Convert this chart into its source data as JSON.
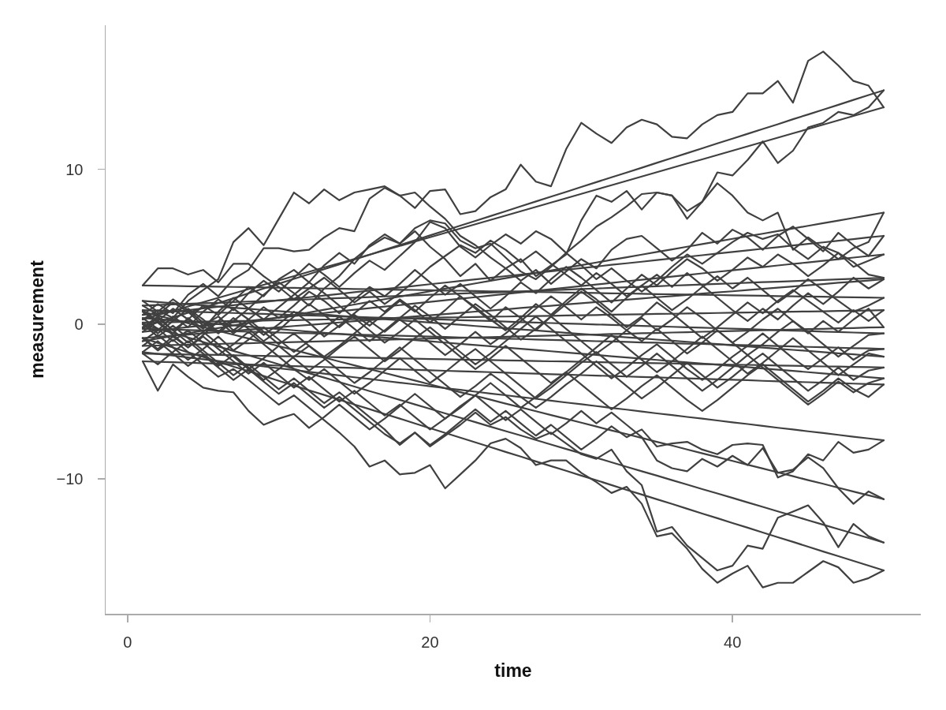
{
  "chart_data": {
    "type": "line",
    "xlabel": "time",
    "ylabel": "measurement",
    "x": [
      1,
      2,
      3,
      4,
      5,
      6,
      7,
      8,
      9,
      10,
      11,
      12,
      13,
      14,
      15,
      16,
      17,
      18,
      19,
      20,
      21,
      22,
      23,
      24,
      25,
      26,
      27,
      28,
      29,
      30,
      31,
      32,
      33,
      34,
      35,
      36,
      37,
      38,
      39,
      40,
      41,
      42,
      43,
      44,
      45,
      46,
      47,
      48,
      49,
      50
    ],
    "xlim": [
      -1.45,
      52.45
    ],
    "xticks": [
      0,
      20,
      40
    ],
    "ylim": [
      -18.7,
      19.3
    ],
    "yticks": [
      {
        "value": -10,
        "label": "−10"
      },
      0,
      10
    ],
    "grid": false,
    "marker": "none",
    "line_style": "solid",
    "series": [
      {
        "color": "#404040",
        "values": [
          0.3,
          0.9,
          0.4,
          1.5,
          2.2,
          2.9,
          5.3,
          6.2,
          5.1,
          6.8,
          8.5,
          7.8,
          8.7,
          8.0,
          8.5,
          8.7,
          8.9,
          8.3,
          7.5,
          8.6,
          8.7,
          7.1,
          7.3,
          8.2,
          8.7,
          10.3,
          9.2,
          8.9,
          11.3,
          13.0,
          12.3,
          11.7,
          12.7,
          13.2,
          12.9,
          12.1,
          12.0,
          12.9,
          13.5,
          13.7,
          14.9,
          14.9,
          15.7,
          14.3,
          17.0,
          17.6,
          16.7,
          15.7,
          15.4,
          14.0
        ]
      },
      {
        "color": "#404040",
        "values": [
          -0.2,
          0.5,
          -0.4,
          0.3,
          1.2,
          0.6,
          1.5,
          2.4,
          1.8,
          2.9,
          3.5,
          2.7,
          3.8,
          4.6,
          3.9,
          5.1,
          5.8,
          5.2,
          6.0,
          5.0,
          4.2,
          3.1,
          3.9,
          2.8,
          3.6,
          4.2,
          3.1,
          3.8,
          4.5,
          6.7,
          8.3,
          7.9,
          8.6,
          7.4,
          8.5,
          8.3,
          6.8,
          7.9,
          9.8,
          9.6,
          10.6,
          11.8,
          10.4,
          11.2,
          12.7,
          13.0,
          13.7,
          13.5,
          14.0,
          15.1
        ]
      },
      {
        "color": "#404040",
        "values": [
          -1.1,
          -0.4,
          0.5,
          -0.2,
          0.8,
          1.6,
          0.9,
          2.0,
          2.8,
          2.1,
          3.0,
          3.9,
          3.2,
          2.4,
          3.3,
          4.1,
          3.5,
          4.4,
          5.3,
          6.6,
          6.2,
          5.0,
          4.3,
          5.1,
          5.8,
          5.2,
          6.0,
          5.5,
          4.6,
          5.4,
          6.3,
          6.9,
          7.6,
          8.4,
          8.5,
          8.3,
          7.3,
          7.9,
          9.1,
          8.3,
          7.2,
          6.7,
          7.2,
          4.8,
          5.6,
          4.9,
          4.2,
          4.9,
          5.3,
          7.2
        ]
      },
      {
        "color": "#404040",
        "values": [
          0.6,
          1.3,
          0.7,
          1.9,
          2.6,
          1.8,
          2.9,
          3.5,
          4.9,
          4.9,
          4.7,
          4.8,
          5.6,
          6.2,
          6.0,
          8.1,
          8.8,
          8.3,
          8.5,
          7.6,
          6.8,
          5.7,
          5.1,
          4.3,
          3.6,
          2.8,
          3.5,
          2.6,
          3.4,
          4.2,
          3.6,
          4.8,
          5.5,
          5.7,
          4.9,
          4.1,
          4.8,
          5.9,
          5.2,
          6.1,
          5.6,
          4.8,
          5.7,
          6.3,
          5.5,
          4.7,
          5.9,
          5.1,
          4.4,
          5.7
        ]
      },
      {
        "color": "#404040",
        "values": [
          -0.5,
          0.2,
          -0.6,
          0.4,
          -0.3,
          0.8,
          1.7,
          1.0,
          1.9,
          2.7,
          2.0,
          1.2,
          2.3,
          3.1,
          4.2,
          5.0,
          5.6,
          5.2,
          6.2,
          6.7,
          6.5,
          5.4,
          4.9,
          5.2,
          4.3,
          3.4,
          2.9,
          3.7,
          4.6,
          3.8,
          2.9,
          3.6,
          2.8,
          2.1,
          2.8,
          3.7,
          4.5,
          3.9,
          4.6,
          5.3,
          5.9,
          5.5,
          5.8,
          4.9,
          4.2,
          5.0,
          4.6,
          3.7,
          4.1,
          4.5
        ]
      },
      {
        "color": "#404040",
        "values": [
          1.2,
          0.6,
          1.4,
          0.8,
          -0.1,
          0.5,
          -0.4,
          0.3,
          1.1,
          0.4,
          1.2,
          2.1,
          1.5,
          0.7,
          1.6,
          2.4,
          1.8,
          2.6,
          3.5,
          2.7,
          1.9,
          2.6,
          1.8,
          1.0,
          1.8,
          2.7,
          2.0,
          2.9,
          3.7,
          3.0,
          2.2,
          1.4,
          2.3,
          3.2,
          2.5,
          3.4,
          4.2,
          3.6,
          2.8,
          3.5,
          4.3,
          3.7,
          4.5,
          3.9,
          3.1,
          3.8,
          4.6,
          4.0,
          3.2,
          3.0
        ]
      },
      {
        "color": "#404040",
        "values": [
          -0.9,
          -1.6,
          -0.8,
          -1.5,
          -0.7,
          0.2,
          -0.6,
          0.1,
          -0.7,
          0.0,
          0.8,
          0.1,
          -0.8,
          -0.1,
          0.7,
          1.5,
          0.8,
          1.6,
          0.9,
          0.1,
          0.9,
          1.8,
          1.1,
          0.3,
          -0.4,
          0.4,
          1.3,
          0.6,
          1.5,
          2.3,
          1.6,
          0.8,
          1.7,
          2.5,
          3.2,
          2.4,
          3.3,
          2.5,
          1.7,
          0.9,
          0.2,
          1.0,
          0.3,
          1.2,
          2.0,
          1.3,
          2.1,
          3.0,
          2.3,
          2.9
        ]
      },
      {
        "color": "#404040",
        "values": [
          2.5,
          3.6,
          3.6,
          3.2,
          3.5,
          2.7,
          3.9,
          3.9,
          3.1,
          2.4,
          1.6,
          2.3,
          3.0,
          2.2,
          1.4,
          2.1,
          1.3,
          2.0,
          2.8,
          3.7,
          4.4,
          5.1,
          4.6,
          5.4,
          4.8,
          4.0,
          4.7,
          3.9,
          3.2,
          2.5,
          3.3,
          2.6,
          1.8,
          2.5,
          1.7,
          0.9,
          1.6,
          2.4,
          3.1,
          2.3,
          3.0,
          2.2,
          1.4,
          2.1,
          2.9,
          2.2,
          1.5,
          0.8,
          1.2,
          1.7
        ]
      },
      {
        "color": "#404040",
        "values": [
          0.1,
          -0.6,
          0.2,
          1.0,
          0.3,
          -0.5,
          0.4,
          -0.3,
          -1.1,
          -0.4,
          0.5,
          1.3,
          0.6,
          -0.2,
          0.6,
          -0.1,
          0.7,
          1.5,
          0.8,
          1.7,
          2.5,
          1.8,
          1.0,
          0.2,
          1.1,
          0.4,
          -0.4,
          0.5,
          1.3,
          2.1,
          1.4,
          0.6,
          -0.2,
          0.5,
          1.4,
          0.7,
          -0.1,
          -0.9,
          -0.2,
          0.6,
          1.4,
          0.7,
          1.5,
          2.2,
          1.5,
          0.8,
          0.1,
          0.9,
          0.2,
          0.9
        ]
      },
      {
        "color": "#404040",
        "values": [
          -1.4,
          -0.7,
          -1.5,
          -2.3,
          -1.6,
          -0.8,
          -1.7,
          -1.0,
          -0.2,
          -1.0,
          -1.8,
          -1.1,
          -0.3,
          0.5,
          -0.3,
          -1.1,
          -0.4,
          0.4,
          1.2,
          0.5,
          -0.3,
          0.5,
          1.3,
          0.6,
          -0.2,
          -1.0,
          -0.3,
          0.5,
          -0.3,
          -1.1,
          -1.9,
          -1.2,
          -0.4,
          0.4,
          -0.4,
          0.3,
          1.1,
          0.4,
          -0.4,
          -1.2,
          -0.5,
          0.3,
          1.0,
          0.2,
          -0.6,
          0.2,
          -0.5,
          0.3,
          1.0,
          -0.2
        ]
      },
      {
        "color": "#404040",
        "values": [
          0.9,
          0.2,
          1.0,
          0.3,
          -0.5,
          0.2,
          1.0,
          0.3,
          -0.5,
          -1.3,
          -0.6,
          -1.4,
          -2.1,
          -1.4,
          -0.6,
          0.2,
          -0.5,
          0.3,
          -0.4,
          -1.2,
          -2.0,
          -1.3,
          -0.5,
          -1.3,
          -0.6,
          0.2,
          1.0,
          1.8,
          1.1,
          0.3,
          1.1,
          0.4,
          -0.4,
          -1.1,
          -0.3,
          -1.1,
          -1.9,
          -1.2,
          -0.4,
          -1.2,
          -2.0,
          -1.3,
          -0.5,
          0.2,
          -0.5,
          -1.3,
          -2.1,
          -1.4,
          -0.7,
          -0.6
        ]
      },
      {
        "color": "#404040",
        "values": [
          -0.3,
          0.4,
          -0.4,
          -1.2,
          -0.5,
          -1.3,
          -2.1,
          -2.9,
          -2.2,
          -1.4,
          -2.2,
          -3.0,
          -2.3,
          -1.5,
          -0.8,
          -1.6,
          -2.4,
          -1.7,
          -0.9,
          -0.2,
          -1.0,
          -1.8,
          -2.6,
          -1.9,
          -1.1,
          -0.3,
          0.5,
          -0.3,
          -1.1,
          -1.9,
          -2.7,
          -3.5,
          -2.8,
          -2.0,
          -1.3,
          -2.1,
          -2.9,
          -3.6,
          -2.9,
          -2.1,
          -1.4,
          -0.6,
          -1.4,
          -2.2,
          -2.9,
          -2.2,
          -1.5,
          -2.3,
          -1.7,
          -1.6
        ]
      },
      {
        "color": "#404040",
        "values": [
          1.5,
          0.8,
          1.6,
          0.9,
          0.1,
          -0.6,
          0.2,
          1.0,
          0.3,
          1.1,
          1.9,
          2.7,
          2.0,
          1.2,
          0.4,
          -0.4,
          -1.2,
          -0.5,
          0.3,
          -0.5,
          -1.3,
          -2.1,
          -2.9,
          -2.2,
          -1.4,
          -2.2,
          -3.0,
          -3.8,
          -3.1,
          -2.3,
          -1.5,
          -0.7,
          -1.5,
          -2.3,
          -3.1,
          -2.4,
          -1.6,
          -0.8,
          -1.6,
          -2.4,
          -3.2,
          -2.5,
          -1.7,
          -0.9,
          -1.7,
          -2.5,
          -3.3,
          -2.6,
          -1.9,
          -2.1
        ]
      },
      {
        "color": "#404040",
        "values": [
          -1.9,
          -2.6,
          -1.8,
          -1.1,
          -1.9,
          -2.7,
          -2.0,
          -2.8,
          -3.6,
          -2.9,
          -2.1,
          -1.4,
          -2.2,
          -3.0,
          -3.8,
          -3.1,
          -2.3,
          -1.5,
          -2.3,
          -3.1,
          -3.9,
          -4.7,
          -4.0,
          -3.2,
          -3.9,
          -4.7,
          -5.4,
          -4.7,
          -3.9,
          -3.2,
          -2.4,
          -3.2,
          -4.0,
          -4.8,
          -4.1,
          -3.3,
          -2.5,
          -3.3,
          -4.1,
          -3.4,
          -2.6,
          -1.9,
          -2.7,
          -3.5,
          -4.3,
          -3.6,
          -2.8,
          -3.6,
          -3.0,
          -2.8
        ]
      },
      {
        "color": "#404040",
        "values": [
          0.4,
          -0.3,
          -1.1,
          -0.4,
          -1.2,
          -2.0,
          -1.3,
          -0.5,
          -1.3,
          -2.1,
          -2.9,
          -3.6,
          -2.9,
          -3.7,
          -4.5,
          -3.8,
          -3.0,
          -2.2,
          -3.0,
          -3.8,
          -3.1,
          -2.3,
          -1.6,
          -2.4,
          -3.2,
          -4.0,
          -4.8,
          -4.1,
          -3.3,
          -2.5,
          -1.8,
          -2.6,
          -3.4,
          -2.7,
          -1.9,
          -2.7,
          -3.5,
          -4.3,
          -3.6,
          -2.8,
          -2.0,
          -2.8,
          -3.6,
          -4.4,
          -5.2,
          -4.5,
          -3.7,
          -4.4,
          -3.8,
          -3.5
        ]
      },
      {
        "color": "#404040",
        "values": [
          -2.4,
          -4.3,
          -2.6,
          -3.4,
          -4.1,
          -4.3,
          -4.4,
          -5.6,
          -6.5,
          -6.1,
          -5.8,
          -6.7,
          -6.0,
          -5.2,
          -6.0,
          -6.8,
          -6.1,
          -5.3,
          -4.5,
          -5.3,
          -6.1,
          -5.4,
          -4.6,
          -3.8,
          -4.6,
          -5.4,
          -4.7,
          -3.9,
          -3.1,
          -3.9,
          -4.7,
          -5.5,
          -4.8,
          -4.0,
          -3.3,
          -4.1,
          -4.9,
          -5.6,
          -4.9,
          -4.1,
          -3.3,
          -2.6,
          -3.4,
          -4.2,
          -5.0,
          -4.3,
          -3.5,
          -4.2,
          -4.7,
          -3.9
        ]
      },
      {
        "color": "#404040",
        "values": [
          -1.8,
          -1.1,
          -1.9,
          -2.7,
          -2.0,
          -2.8,
          -3.6,
          -2.9,
          -3.7,
          -4.5,
          -3.8,
          -4.6,
          -5.4,
          -4.7,
          -5.5,
          -6.3,
          -7.1,
          -7.7,
          -7.0,
          -7.8,
          -7.1,
          -6.3,
          -5.5,
          -6.3,
          -5.6,
          -6.4,
          -7.2,
          -6.5,
          -7.3,
          -8.1,
          -7.4,
          -6.6,
          -7.3,
          -6.8,
          -7.9,
          -7.7,
          -7.6,
          -8.1,
          -8.4,
          -7.8,
          -7.7,
          -7.8,
          -9.9,
          -9.5,
          -8.4,
          -8.8,
          -7.6,
          -8.3,
          -8.1,
          -7.5
        ]
      },
      {
        "color": "#404040",
        "values": [
          0.8,
          0.1,
          -0.7,
          -1.5,
          -0.8,
          -1.6,
          -2.4,
          -3.2,
          -2.5,
          -3.3,
          -4.1,
          -3.4,
          -4.2,
          -5.0,
          -4.3,
          -5.1,
          -5.9,
          -5.2,
          -6.0,
          -6.8,
          -6.1,
          -5.3,
          -4.6,
          -5.4,
          -6.2,
          -5.5,
          -6.3,
          -7.1,
          -6.4,
          -5.6,
          -6.4,
          -5.7,
          -6.5,
          -7.3,
          -8.8,
          -9.3,
          -9.5,
          -8.7,
          -9.2,
          -8.5,
          -9.1,
          -8.0,
          -9.6,
          -9.4,
          -8.6,
          -9.3,
          -10.6,
          -11.6,
          -10.8,
          -11.3
        ]
      },
      {
        "color": "#404040",
        "values": [
          0.0,
          -0.8,
          -0.1,
          -0.9,
          -1.7,
          -2.5,
          -3.3,
          -2.6,
          -3.4,
          -4.2,
          -3.5,
          -4.3,
          -5.1,
          -4.4,
          -5.2,
          -6.0,
          -6.8,
          -7.8,
          -7.0,
          -7.9,
          -7.2,
          -6.5,
          -5.7,
          -6.5,
          -6.0,
          -6.8,
          -7.4,
          -7.0,
          -7.7,
          -8.4,
          -8.7,
          -8.1,
          -9.5,
          -10.4,
          -13.4,
          -13.1,
          -14.3,
          -15.1,
          -15.9,
          -15.6,
          -14.3,
          -14.5,
          -12.5,
          -12.1,
          -11.7,
          -12.8,
          -14.4,
          -12.9,
          -13.7,
          -14.1
        ]
      },
      {
        "color": "#404040",
        "values": [
          -0.9,
          -1.7,
          -1.0,
          -1.8,
          -2.6,
          -3.4,
          -2.9,
          -3.6,
          -4.4,
          -5.2,
          -4.6,
          -5.4,
          -6.2,
          -7.0,
          -7.9,
          -9.2,
          -8.8,
          -9.7,
          -9.6,
          -9.1,
          -10.6,
          -9.7,
          -8.8,
          -7.7,
          -7.4,
          -8.0,
          -9.1,
          -8.8,
          -8.8,
          -9.6,
          -10.2,
          -10.9,
          -10.5,
          -11.6,
          -13.7,
          -13.5,
          -14.5,
          -15.8,
          -16.7,
          -16.1,
          -15.6,
          -17.0,
          -16.7,
          -16.7,
          -16.0,
          -15.3,
          -15.7,
          -16.7,
          -16.4,
          -15.9
        ]
      },
      {
        "color": "#404040",
        "values": [
          0.3,
          0.58,
          0.86,
          1.14,
          1.42,
          1.7,
          1.98,
          2.26,
          2.54,
          2.82,
          3.1,
          3.38,
          3.66,
          3.93,
          4.21,
          4.49,
          4.77,
          5.05,
          5.33,
          5.61,
          5.89,
          6.17,
          6.45,
          6.73,
          7.01,
          7.29,
          7.57,
          7.85,
          8.13,
          8.41,
          8.69,
          8.97,
          9.25,
          9.53,
          9.81,
          10.09,
          10.37,
          10.64,
          10.92,
          11.2,
          11.48,
          11.76,
          12.04,
          12.32,
          12.6,
          12.88,
          13.16,
          13.44,
          13.72,
          14.0
        ]
      },
      {
        "color": "#404040",
        "values": [
          -0.2,
          0.11,
          0.42,
          0.74,
          1.05,
          1.36,
          1.67,
          1.99,
          2.3,
          2.61,
          2.92,
          3.23,
          3.55,
          3.86,
          4.17,
          4.48,
          4.8,
          5.11,
          5.42,
          5.73,
          6.04,
          6.36,
          6.67,
          6.98,
          7.29,
          7.61,
          7.92,
          8.23,
          8.54,
          8.86,
          9.17,
          9.48,
          9.79,
          10.1,
          10.42,
          10.73,
          11.04,
          11.35,
          11.67,
          11.98,
          12.29,
          12.6,
          12.91,
          13.23,
          13.54,
          13.85,
          14.16,
          14.48,
          14.79,
          15.1
        ]
      },
      {
        "color": "#404040",
        "values": [
          -1.1,
          -0.93,
          -0.76,
          -0.59,
          -0.42,
          -0.25,
          -0.08,
          0.09,
          0.26,
          0.42,
          0.59,
          0.76,
          0.93,
          1.1,
          1.27,
          1.44,
          1.61,
          1.78,
          1.95,
          2.12,
          2.29,
          2.46,
          2.63,
          2.8,
          2.97,
          3.13,
          3.3,
          3.47,
          3.64,
          3.81,
          3.98,
          4.15,
          4.32,
          4.49,
          4.66,
          4.83,
          5.0,
          5.17,
          5.34,
          5.51,
          5.68,
          5.84,
          6.01,
          6.18,
          6.35,
          6.52,
          6.69,
          6.86,
          7.03,
          7.2
        ]
      },
      {
        "color": "#404040",
        "values": [
          0.6,
          0.7,
          0.81,
          0.91,
          1.02,
          1.12,
          1.22,
          1.33,
          1.43,
          1.54,
          1.64,
          1.74,
          1.85,
          1.95,
          2.06,
          2.16,
          2.27,
          2.37,
          2.47,
          2.58,
          2.68,
          2.79,
          2.89,
          2.99,
          3.1,
          3.2,
          3.31,
          3.41,
          3.51,
          3.62,
          3.72,
          3.83,
          3.93,
          4.03,
          4.14,
          4.24,
          4.35,
          4.45,
          4.56,
          4.66,
          4.76,
          4.87,
          4.97,
          5.08,
          5.18,
          5.28,
          5.39,
          5.49,
          5.6,
          5.7
        ]
      },
      {
        "color": "#404040",
        "values": [
          -0.5,
          -0.4,
          -0.3,
          -0.19,
          -0.09,
          0.01,
          0.11,
          0.21,
          0.32,
          0.42,
          0.52,
          0.62,
          0.72,
          0.83,
          0.93,
          1.03,
          1.13,
          1.23,
          1.34,
          1.44,
          1.54,
          1.64,
          1.74,
          1.85,
          1.95,
          2.05,
          2.15,
          2.26,
          2.36,
          2.46,
          2.56,
          2.66,
          2.77,
          2.87,
          2.97,
          3.07,
          3.17,
          3.28,
          3.38,
          3.48,
          3.58,
          3.68,
          3.79,
          3.89,
          3.99,
          4.09,
          4.19,
          4.3,
          4.4,
          4.5
        ]
      },
      {
        "color": "#404040",
        "values": [
          1.2,
          1.24,
          1.27,
          1.31,
          1.35,
          1.38,
          1.42,
          1.46,
          1.49,
          1.53,
          1.57,
          1.6,
          1.64,
          1.68,
          1.71,
          1.75,
          1.79,
          1.82,
          1.86,
          1.9,
          1.93,
          1.97,
          2.01,
          2.04,
          2.08,
          2.12,
          2.16,
          2.19,
          2.23,
          2.27,
          2.3,
          2.34,
          2.38,
          2.41,
          2.45,
          2.49,
          2.52,
          2.56,
          2.6,
          2.63,
          2.67,
          2.71,
          2.74,
          2.78,
          2.82,
          2.85,
          2.89,
          2.93,
          2.96,
          3.0
        ]
      },
      {
        "color": "#404040",
        "values": [
          -0.9,
          -0.82,
          -0.74,
          -0.67,
          -0.59,
          -0.51,
          -0.43,
          -0.36,
          -0.28,
          -0.2,
          -0.12,
          -0.05,
          0.03,
          0.11,
          0.19,
          0.26,
          0.34,
          0.42,
          0.5,
          0.57,
          0.65,
          0.73,
          0.81,
          0.88,
          0.96,
          1.04,
          1.12,
          1.19,
          1.27,
          1.35,
          1.43,
          1.5,
          1.58,
          1.66,
          1.74,
          1.81,
          1.89,
          1.97,
          2.05,
          2.12,
          2.2,
          2.28,
          2.36,
          2.43,
          2.51,
          2.59,
          2.67,
          2.74,
          2.82,
          2.9
        ]
      },
      {
        "color": "#404040",
        "values": [
          2.5,
          2.48,
          2.47,
          2.45,
          2.43,
          2.42,
          2.4,
          2.39,
          2.37,
          2.35,
          2.34,
          2.32,
          2.3,
          2.29,
          2.27,
          2.26,
          2.24,
          2.22,
          2.21,
          2.19,
          2.17,
          2.16,
          2.14,
          2.12,
          2.11,
          2.09,
          2.08,
          2.06,
          2.04,
          2.03,
          2.01,
          1.99,
          1.98,
          1.96,
          1.94,
          1.93,
          1.91,
          1.9,
          1.88,
          1.86,
          1.85,
          1.83,
          1.81,
          1.8,
          1.78,
          1.77,
          1.75,
          1.73,
          1.72,
          1.7
        ]
      },
      {
        "color": "#404040",
        "values": [
          0.1,
          0.12,
          0.13,
          0.15,
          0.17,
          0.18,
          0.2,
          0.21,
          0.23,
          0.25,
          0.26,
          0.28,
          0.3,
          0.31,
          0.33,
          0.34,
          0.36,
          0.38,
          0.39,
          0.41,
          0.43,
          0.44,
          0.46,
          0.48,
          0.49,
          0.51,
          0.52,
          0.54,
          0.56,
          0.57,
          0.59,
          0.61,
          0.62,
          0.64,
          0.66,
          0.67,
          0.69,
          0.7,
          0.72,
          0.74,
          0.75,
          0.77,
          0.79,
          0.8,
          0.82,
          0.83,
          0.85,
          0.87,
          0.88,
          0.9
        ]
      },
      {
        "color": "#404040",
        "values": [
          -1.4,
          -1.38,
          -1.35,
          -1.33,
          -1.3,
          -1.28,
          -1.25,
          -1.23,
          -1.2,
          -1.18,
          -1.16,
          -1.13,
          -1.11,
          -1.08,
          -1.06,
          -1.03,
          -1.01,
          -0.98,
          -0.96,
          -0.93,
          -0.91,
          -0.89,
          -0.86,
          -0.84,
          -0.81,
          -0.79,
          -0.76,
          -0.74,
          -0.71,
          -0.69,
          -0.67,
          -0.64,
          -0.62,
          -0.59,
          -0.57,
          -0.54,
          -0.52,
          -0.49,
          -0.47,
          -0.44,
          -0.42,
          -0.4,
          -0.37,
          -0.35,
          -0.32,
          -0.3,
          -0.27,
          -0.25,
          -0.22,
          -0.2
        ]
      },
      {
        "color": "#404040",
        "values": [
          0.9,
          0.87,
          0.84,
          0.81,
          0.78,
          0.75,
          0.72,
          0.69,
          0.66,
          0.62,
          0.59,
          0.56,
          0.53,
          0.5,
          0.47,
          0.44,
          0.41,
          0.38,
          0.35,
          0.32,
          0.29,
          0.26,
          0.23,
          0.2,
          0.17,
          0.13,
          0.1,
          0.07,
          0.04,
          0.01,
          -0.02,
          -0.05,
          -0.08,
          -0.11,
          -0.14,
          -0.17,
          -0.2,
          -0.23,
          -0.26,
          -0.29,
          -0.32,
          -0.36,
          -0.39,
          -0.42,
          -0.45,
          -0.48,
          -0.51,
          -0.54,
          -0.57,
          -0.6
        ]
      },
      {
        "color": "#404040",
        "values": [
          -0.3,
          -0.33,
          -0.35,
          -0.38,
          -0.41,
          -0.43,
          -0.46,
          -0.49,
          -0.51,
          -0.54,
          -0.57,
          -0.59,
          -0.62,
          -0.64,
          -0.67,
          -0.7,
          -0.72,
          -0.75,
          -0.78,
          -0.8,
          -0.83,
          -0.86,
          -0.88,
          -0.91,
          -0.94,
          -0.96,
          -0.99,
          -1.02,
          -1.04,
          -1.07,
          -1.1,
          -1.12,
          -1.15,
          -1.18,
          -1.2,
          -1.23,
          -1.26,
          -1.28,
          -1.31,
          -1.33,
          -1.36,
          -1.39,
          -1.41,
          -1.44,
          -1.47,
          -1.49,
          -1.52,
          -1.55,
          -1.57,
          -1.6
        ]
      },
      {
        "color": "#404040",
        "values": [
          1.5,
          1.43,
          1.35,
          1.28,
          1.21,
          1.13,
          1.06,
          0.99,
          0.91,
          0.84,
          0.77,
          0.69,
          0.62,
          0.54,
          0.47,
          0.4,
          0.32,
          0.25,
          0.18,
          0.1,
          0.03,
          -0.04,
          -0.12,
          -0.19,
          -0.26,
          -0.34,
          -0.41,
          -0.48,
          -0.56,
          -0.63,
          -0.7,
          -0.78,
          -0.85,
          -0.92,
          -1.0,
          -1.07,
          -1.14,
          -1.22,
          -1.29,
          -1.37,
          -1.44,
          -1.51,
          -1.59,
          -1.66,
          -1.73,
          -1.81,
          -1.88,
          -1.95,
          -2.03,
          -2.1
        ]
      },
      {
        "color": "#404040",
        "values": [
          -1.9,
          -1.92,
          -1.94,
          -1.96,
          -1.97,
          -1.99,
          -2.01,
          -2.03,
          -2.05,
          -2.07,
          -2.08,
          -2.1,
          -2.12,
          -2.14,
          -2.16,
          -2.18,
          -2.19,
          -2.21,
          -2.23,
          -2.25,
          -2.27,
          -2.29,
          -2.3,
          -2.32,
          -2.34,
          -2.36,
          -2.38,
          -2.4,
          -2.41,
          -2.43,
          -2.45,
          -2.47,
          -2.49,
          -2.51,
          -2.52,
          -2.54,
          -2.56,
          -2.58,
          -2.6,
          -2.62,
          -2.63,
          -2.65,
          -2.67,
          -2.69,
          -2.71,
          -2.73,
          -2.74,
          -2.76,
          -2.78,
          -2.8
        ]
      },
      {
        "color": "#404040",
        "values": [
          0.4,
          0.32,
          0.24,
          0.16,
          0.08,
          0.0,
          -0.08,
          -0.16,
          -0.24,
          -0.32,
          -0.4,
          -0.48,
          -0.56,
          -0.63,
          -0.71,
          -0.79,
          -0.87,
          -0.95,
          -1.03,
          -1.11,
          -1.19,
          -1.27,
          -1.35,
          -1.43,
          -1.51,
          -1.59,
          -1.67,
          -1.75,
          -1.83,
          -1.91,
          -1.99,
          -2.07,
          -2.15,
          -2.23,
          -2.31,
          -2.39,
          -2.47,
          -2.54,
          -2.62,
          -2.7,
          -2.78,
          -2.86,
          -2.94,
          -3.02,
          -3.1,
          -3.18,
          -3.26,
          -3.34,
          -3.42,
          -3.5
        ]
      },
      {
        "color": "#404040",
        "values": [
          -2.4,
          -2.43,
          -2.46,
          -2.49,
          -2.52,
          -2.55,
          -2.58,
          -2.61,
          -2.64,
          -2.68,
          -2.71,
          -2.74,
          -2.77,
          -2.8,
          -2.83,
          -2.86,
          -2.89,
          -2.92,
          -2.95,
          -2.98,
          -3.01,
          -3.04,
          -3.07,
          -3.1,
          -3.13,
          -3.17,
          -3.2,
          -3.23,
          -3.26,
          -3.29,
          -3.32,
          -3.35,
          -3.38,
          -3.41,
          -3.44,
          -3.47,
          -3.5,
          -3.53,
          -3.56,
          -3.59,
          -3.62,
          -3.66,
          -3.69,
          -3.72,
          -3.75,
          -3.78,
          -3.81,
          -3.84,
          -3.87,
          -3.9
        ]
      },
      {
        "color": "#404040",
        "values": [
          -1.8,
          -1.92,
          -2.03,
          -2.15,
          -2.27,
          -2.38,
          -2.5,
          -2.61,
          -2.73,
          -2.85,
          -2.96,
          -3.08,
          -3.2,
          -3.31,
          -3.43,
          -3.54,
          -3.66,
          -3.78,
          -3.89,
          -4.01,
          -4.13,
          -4.24,
          -4.36,
          -4.48,
          -4.59,
          -4.71,
          -4.82,
          -4.94,
          -5.06,
          -5.17,
          -5.29,
          -5.41,
          -5.52,
          -5.64,
          -5.76,
          -5.87,
          -5.99,
          -6.1,
          -6.22,
          -6.34,
          -6.45,
          -6.57,
          -6.69,
          -6.8,
          -6.92,
          -7.03,
          -7.15,
          -7.27,
          -7.38,
          -7.5
        ]
      },
      {
        "color": "#404040",
        "values": [
          0.8,
          0.55,
          0.31,
          0.06,
          -0.19,
          -0.43,
          -0.68,
          -0.93,
          -1.18,
          -1.42,
          -1.67,
          -1.92,
          -2.16,
          -2.41,
          -2.66,
          -2.9,
          -3.15,
          -3.4,
          -3.64,
          -3.89,
          -4.14,
          -4.39,
          -4.63,
          -4.88,
          -5.13,
          -5.37,
          -5.62,
          -5.87,
          -6.11,
          -6.36,
          -6.61,
          -6.86,
          -7.1,
          -7.35,
          -7.6,
          -7.84,
          -8.09,
          -8.34,
          -8.58,
          -8.83,
          -9.08,
          -9.32,
          -9.57,
          -9.82,
          -10.07,
          -10.31,
          -10.56,
          -10.81,
          -11.05,
          -11.3
        ]
      },
      {
        "color": "#404040",
        "values": [
          0.0,
          -0.29,
          -0.58,
          -0.86,
          -1.15,
          -1.44,
          -1.73,
          -2.01,
          -2.3,
          -2.59,
          -2.88,
          -3.17,
          -3.45,
          -3.74,
          -4.03,
          -4.32,
          -4.6,
          -4.89,
          -5.18,
          -5.47,
          -5.76,
          -6.04,
          -6.33,
          -6.62,
          -6.91,
          -7.19,
          -7.48,
          -7.77,
          -8.06,
          -8.34,
          -8.63,
          -8.92,
          -9.21,
          -9.5,
          -9.78,
          -10.07,
          -10.36,
          -10.65,
          -10.93,
          -11.22,
          -11.51,
          -11.8,
          -12.09,
          -12.37,
          -12.66,
          -12.95,
          -13.24,
          -13.52,
          -13.81,
          -14.1
        ]
      },
      {
        "color": "#404040",
        "values": [
          -0.9,
          -1.21,
          -1.51,
          -1.82,
          -2.12,
          -2.43,
          -2.74,
          -3.04,
          -3.35,
          -3.66,
          -3.96,
          -4.27,
          -4.57,
          -4.88,
          -5.19,
          -5.49,
          -5.8,
          -6.1,
          -6.41,
          -6.72,
          -7.02,
          -7.33,
          -7.63,
          -7.94,
          -8.25,
          -8.55,
          -8.86,
          -9.17,
          -9.47,
          -9.78,
          -10.08,
          -10.39,
          -10.7,
          -11.0,
          -11.31,
          -11.61,
          -11.92,
          -12.23,
          -12.53,
          -12.84,
          -13.14,
          -13.45,
          -13.76,
          -14.06,
          -14.37,
          -14.68,
          -14.98,
          -15.29,
          -15.59,
          -15.9
        ]
      }
    ]
  }
}
